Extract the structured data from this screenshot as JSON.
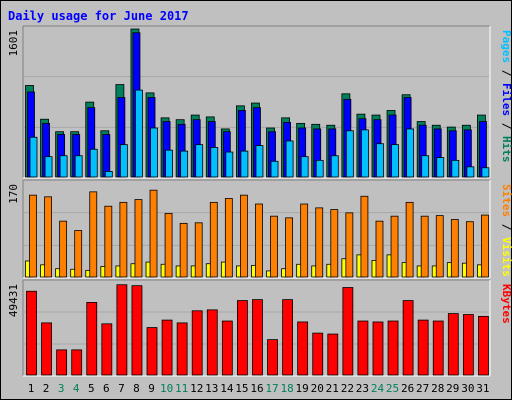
{
  "title": "Daily usage for June 2017",
  "colors": {
    "background": "#c0c0c0",
    "panel": "#c0c0c0",
    "hits": "#00805c",
    "files": "#0000ff",
    "pages": "#00c0ff",
    "visits": "#ff8000",
    "sites": "#ffff00",
    "kbytes": "#ff0000",
    "title": "#0000ff",
    "day_normal": "#000000",
    "day_weekend": "#00805c"
  },
  "chart_data": [
    {
      "type": "bar",
      "ymax_label": "1601",
      "ylim": [
        0,
        1601
      ],
      "legend": [
        "Pages",
        "Files",
        "Hits"
      ],
      "categories": [
        "1",
        "2",
        "3",
        "4",
        "5",
        "6",
        "7",
        "8",
        "9",
        "10",
        "11",
        "12",
        "13",
        "14",
        "15",
        "16",
        "17",
        "18",
        "19",
        "20",
        "21",
        "22",
        "23",
        "24",
        "25",
        "26",
        "27",
        "28",
        "29",
        "30",
        "31"
      ],
      "series": [
        {
          "name": "Hits",
          "values": [
            990,
            625,
            490,
            490,
            810,
            500,
            1000,
            1601,
            910,
            640,
            620,
            670,
            650,
            520,
            770,
            800,
            530,
            640,
            580,
            570,
            560,
            900,
            680,
            670,
            720,
            890,
            600,
            560,
            540,
            560,
            670
          ]
        },
        {
          "name": "Files",
          "values": [
            920,
            580,
            460,
            460,
            750,
            460,
            860,
            1560,
            860,
            600,
            570,
            620,
            600,
            490,
            720,
            750,
            490,
            590,
            530,
            520,
            520,
            840,
            630,
            620,
            670,
            860,
            560,
            520,
            500,
            510,
            600
          ]
        },
        {
          "name": "Pages",
          "values": [
            430,
            220,
            230,
            230,
            300,
            60,
            350,
            940,
            530,
            290,
            280,
            350,
            320,
            270,
            280,
            340,
            170,
            390,
            220,
            180,
            230,
            500,
            510,
            360,
            350,
            520,
            230,
            210,
            180,
            110,
            100
          ]
        }
      ]
    },
    {
      "type": "bar",
      "ymax_label": "170",
      "ylim": [
        0,
        170
      ],
      "legend": [
        "Sites",
        "Visits"
      ],
      "categories": [
        "1",
        "2",
        "3",
        "4",
        "5",
        "6",
        "7",
        "8",
        "9",
        "10",
        "11",
        "12",
        "13",
        "14",
        "15",
        "16",
        "17",
        "18",
        "19",
        "20",
        "21",
        "22",
        "23",
        "24",
        "25",
        "26",
        "27",
        "28",
        "29",
        "30",
        "31"
      ],
      "series": [
        {
          "name": "Visits",
          "values": [
            148,
            145,
            101,
            84,
            154,
            128,
            135,
            140,
            157,
            115,
            97,
            98,
            135,
            142,
            148,
            132,
            110,
            107,
            132,
            125,
            122,
            116,
            146,
            101,
            110,
            135,
            110,
            111,
            104,
            100,
            112
          ]
        },
        {
          "name": "Sites",
          "values": [
            29,
            22,
            15,
            14,
            12,
            19,
            20,
            24,
            27,
            23,
            20,
            20,
            24,
            27,
            20,
            21,
            11,
            15,
            23,
            20,
            23,
            33,
            40,
            30,
            40,
            26,
            20,
            20,
            26,
            25,
            22
          ]
        }
      ]
    },
    {
      "type": "bar",
      "ymax_label": "49431",
      "ylim": [
        0,
        49431
      ],
      "legend": [
        "KBytes"
      ],
      "categories": [
        "1",
        "2",
        "3",
        "4",
        "5",
        "6",
        "7",
        "8",
        "9",
        "10",
        "11",
        "12",
        "13",
        "14",
        "15",
        "16",
        "17",
        "18",
        "19",
        "20",
        "21",
        "22",
        "23",
        "24",
        "25",
        "26",
        "27",
        "28",
        "29",
        "30",
        "31"
      ],
      "series": [
        {
          "name": "KBytes",
          "values": [
            45000,
            28000,
            13500,
            13500,
            39000,
            27500,
            48500,
            48000,
            25500,
            29500,
            28000,
            34500,
            35000,
            29000,
            40000,
            40500,
            19000,
            40500,
            28500,
            22500,
            22000,
            47000,
            29000,
            28500,
            29000,
            40000,
            29500,
            29000,
            33000,
            32500,
            31500
          ]
        }
      ]
    }
  ],
  "x_labels": [
    {
      "t": "1",
      "w": false
    },
    {
      "t": "2",
      "w": false
    },
    {
      "t": "3",
      "w": true
    },
    {
      "t": "4",
      "w": true
    },
    {
      "t": "5",
      "w": false
    },
    {
      "t": "6",
      "w": false
    },
    {
      "t": "7",
      "w": false
    },
    {
      "t": "8",
      "w": false
    },
    {
      "t": "9",
      "w": false
    },
    {
      "t": "10",
      "w": true
    },
    {
      "t": "11",
      "w": true
    },
    {
      "t": "12",
      "w": false
    },
    {
      "t": "13",
      "w": false
    },
    {
      "t": "14",
      "w": false
    },
    {
      "t": "15",
      "w": false
    },
    {
      "t": "16",
      "w": false
    },
    {
      "t": "17",
      "w": true
    },
    {
      "t": "18",
      "w": true
    },
    {
      "t": "19",
      "w": false
    },
    {
      "t": "20",
      "w": false
    },
    {
      "t": "21",
      "w": false
    },
    {
      "t": "22",
      "w": false
    },
    {
      "t": "23",
      "w": false
    },
    {
      "t": "24",
      "w": true
    },
    {
      "t": "25",
      "w": true
    },
    {
      "t": "26",
      "w": false
    },
    {
      "t": "27",
      "w": false
    },
    {
      "t": "28",
      "w": false
    },
    {
      "t": "29",
      "w": false
    },
    {
      "t": "30",
      "w": false
    },
    {
      "t": "31",
      "w": false
    }
  ]
}
